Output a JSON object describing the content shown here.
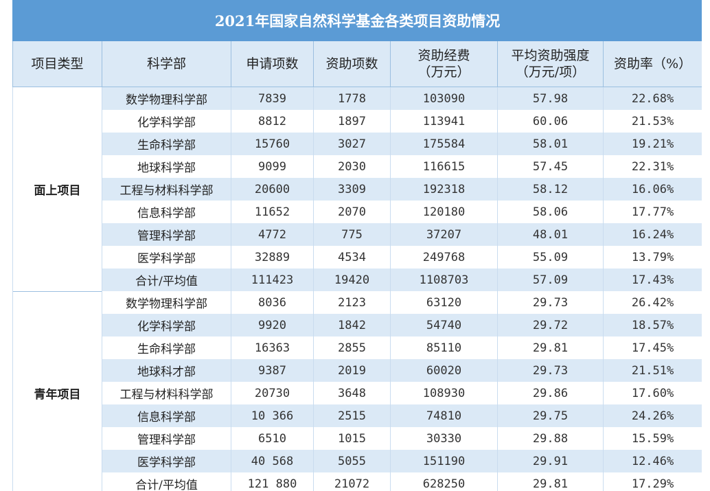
{
  "title": "2021年国家自然科学基金各类项目资助情况",
  "headers": {
    "type": "项目类型",
    "dept": "科学部",
    "applications": "申请项数",
    "funded": "资助项数",
    "funding_line1": "资助经费",
    "funding_line2": "（万元）",
    "intensity_line1": "平均资助强度",
    "intensity_line2": "（万元/项）",
    "rate": "资助率（%）"
  },
  "groups": [
    {
      "type": "面上项目",
      "rows": [
        {
          "dept": "数学物理科学部",
          "applications": "7839",
          "funded": "1778",
          "funding": "103090",
          "intensity": "57.98",
          "rate": "22.68%"
        },
        {
          "dept": "化学科学部",
          "applications": "8812",
          "funded": "1897",
          "funding": "113941",
          "intensity": "60.06",
          "rate": "21.53%"
        },
        {
          "dept": "生命科学部",
          "applications": "15760",
          "funded": "3027",
          "funding": "175584",
          "intensity": "58.01",
          "rate": "19.21%"
        },
        {
          "dept": "地球科学部",
          "applications": "9099",
          "funded": "2030",
          "funding": "116615",
          "intensity": "57.45",
          "rate": "22.31%"
        },
        {
          "dept": "工程与材料科学部",
          "applications": "20600",
          "funded": "3309",
          "funding": "192318",
          "intensity": "58.12",
          "rate": "16.06%"
        },
        {
          "dept": "信息科学部",
          "applications": "11652",
          "funded": "2070",
          "funding": "120180",
          "intensity": "58.06",
          "rate": "17.77%"
        },
        {
          "dept": "管理科学部",
          "applications": "4772",
          "funded": "775",
          "funding": "37207",
          "intensity": "48.01",
          "rate": "16.24%"
        },
        {
          "dept": "医学科学部",
          "applications": "32889",
          "funded": "4534",
          "funding": "249768",
          "intensity": "55.09",
          "rate": "13.79%"
        },
        {
          "dept": "合计/平均值",
          "applications": "111423",
          "funded": "19420",
          "funding": "1108703",
          "intensity": "57.09",
          "rate": "17.43%"
        }
      ]
    },
    {
      "type": "青年项目",
      "rows": [
        {
          "dept": "数学物理科学部",
          "applications": "8036",
          "funded": "2123",
          "funding": "63120",
          "intensity": "29.73",
          "rate": "26.42%"
        },
        {
          "dept": "化学科学部",
          "applications": "9920",
          "funded": "1842",
          "funding": "54740",
          "intensity": "29.72",
          "rate": "18.57%"
        },
        {
          "dept": "生命科学部",
          "applications": "16363",
          "funded": "2855",
          "funding": "85110",
          "intensity": "29.81",
          "rate": "17.45%"
        },
        {
          "dept": "地球科才部",
          "applications": "9387",
          "funded": "2019",
          "funding": "60020",
          "intensity": "29.73",
          "rate": "21.51%"
        },
        {
          "dept": "工程与材料科学部",
          "applications": "20730",
          "funded": "3648",
          "funding": "108930",
          "intensity": "29.86",
          "rate": "17.60%"
        },
        {
          "dept": "信息科学部",
          "applications": "10 366",
          "funded": "2515",
          "funding": "74810",
          "intensity": "29.75",
          "rate": "24.26%"
        },
        {
          "dept": "管理科学部",
          "applications": "6510",
          "funded": "1015",
          "funding": "30330",
          "intensity": "29.88",
          "rate": "15.59%"
        },
        {
          "dept": "医学科学部",
          "applications": "40 568",
          "funded": "5055",
          "funding": "151190",
          "intensity": "29.91",
          "rate": "12.46%"
        },
        {
          "dept": "合计/平均值",
          "applications": "121 880",
          "funded": "21072",
          "funding": "628250",
          "intensity": "29.81",
          "rate": "17.29%"
        }
      ]
    }
  ]
}
